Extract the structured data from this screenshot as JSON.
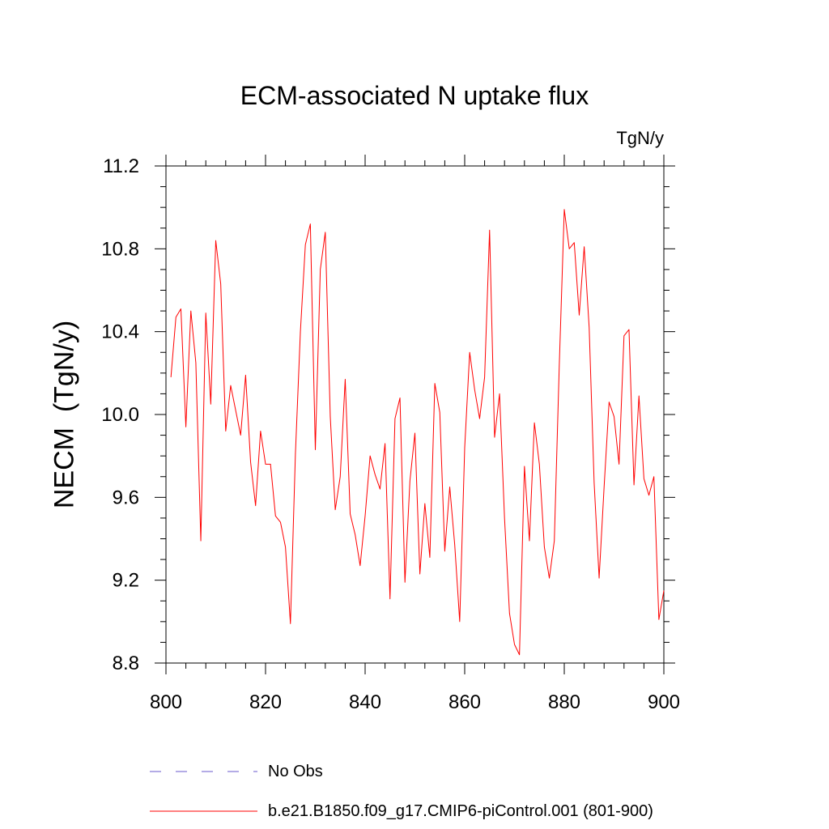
{
  "chart_data": {
    "type": "line",
    "title": "ECM-associated N uptake flux",
    "units": "TgN/y",
    "xlabel": "",
    "ylabel": "NECM  (TgN/y)",
    "xlim": [
      800,
      900
    ],
    "ylim": [
      8.8,
      11.2
    ],
    "xticks": [
      800,
      820,
      840,
      860,
      880,
      900
    ],
    "xtick_labels": [
      "800",
      "820",
      "840",
      "860",
      "880",
      "900"
    ],
    "yticks": [
      8.8,
      9.2,
      9.6,
      10.0,
      10.4,
      10.8,
      11.2
    ],
    "ytick_labels": [
      "8.8",
      "9.2",
      "9.6",
      "10.0",
      "10.4",
      "10.8",
      "11.2"
    ],
    "grid": false,
    "legend_position": "bottom",
    "series": [
      {
        "name": "b.e21.B1850.f09_g17.CMIP6-piControl.001 (801-900)",
        "color": "#ff0000",
        "style": "solid",
        "x": [
          801,
          802,
          803,
          804,
          805,
          806,
          807,
          808,
          809,
          810,
          811,
          812,
          813,
          814,
          815,
          816,
          817,
          818,
          819,
          820,
          821,
          822,
          823,
          824,
          825,
          826,
          827,
          828,
          829,
          830,
          831,
          832,
          833,
          834,
          835,
          836,
          837,
          838,
          839,
          840,
          841,
          842,
          843,
          844,
          845,
          846,
          847,
          848,
          849,
          850,
          851,
          852,
          853,
          854,
          855,
          856,
          857,
          858,
          859,
          860,
          861,
          862,
          863,
          864,
          865,
          866,
          867,
          868,
          869,
          870,
          871,
          872,
          873,
          874,
          875,
          876,
          877,
          878,
          879,
          880,
          881,
          882,
          883,
          884,
          885,
          886,
          887,
          888,
          889,
          890,
          891,
          892,
          893,
          894,
          895,
          896,
          897,
          898,
          899,
          900
        ],
        "values": [
          10.18,
          10.47,
          10.51,
          9.94,
          10.5,
          10.25,
          9.39,
          10.49,
          10.05,
          10.84,
          10.63,
          9.92,
          10.14,
          10.02,
          9.9,
          10.19,
          9.77,
          9.56,
          9.92,
          9.76,
          9.76,
          9.51,
          9.48,
          9.36,
          8.99,
          9.81,
          10.4,
          10.82,
          10.92,
          9.83,
          10.7,
          10.88,
          9.99,
          9.54,
          9.7,
          10.17,
          9.52,
          9.42,
          9.27,
          9.51,
          9.8,
          9.71,
          9.64,
          9.86,
          9.11,
          9.98,
          10.08,
          9.19,
          9.68,
          9.91,
          9.23,
          9.57,
          9.31,
          10.15,
          10.01,
          9.34,
          9.65,
          9.37,
          9.0,
          9.84,
          10.3,
          10.12,
          9.98,
          10.18,
          10.89,
          9.89,
          10.1,
          9.5,
          9.04,
          8.89,
          8.84,
          9.75,
          9.39,
          9.96,
          9.76,
          9.36,
          9.21,
          9.39,
          10.24,
          10.99,
          10.8,
          10.83,
          10.48,
          10.81,
          10.42,
          9.67,
          9.21,
          9.65,
          10.06,
          9.99,
          9.76,
          10.38,
          10.41,
          9.66,
          10.09,
          9.69,
          9.61,
          9.7,
          9.01,
          9.15
        ]
      },
      {
        "name": "No Obs",
        "color": "#6a5acd",
        "style": "dashed",
        "x": [],
        "values": []
      }
    ]
  }
}
